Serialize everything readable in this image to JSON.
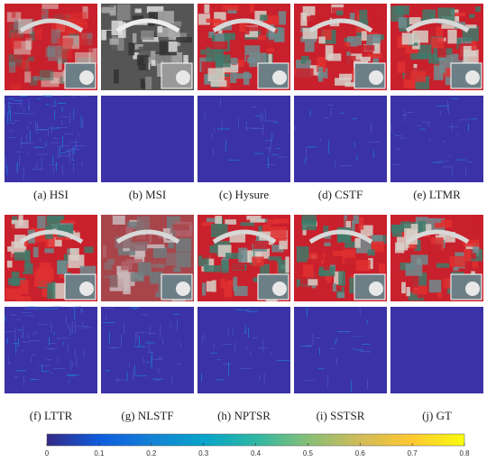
{
  "panels": [
    {
      "caption": "(a) HSI"
    },
    {
      "caption": "(b) MSI"
    },
    {
      "caption": "(c) Hysure"
    },
    {
      "caption": "(d) CSTF"
    },
    {
      "caption": "(e) LTMR"
    },
    {
      "caption": "(f) LTTR"
    },
    {
      "caption": "(g) NLSTF"
    },
    {
      "caption": "(h) NPTSR"
    },
    {
      "caption": "(i) SSTSR"
    },
    {
      "caption": "(j) GT"
    }
  ],
  "colorbar": {
    "lim": [
      0,
      0.8
    ],
    "ticks": [
      0,
      0.1,
      0.2,
      0.3,
      0.4,
      0.5,
      0.6,
      0.7,
      0.8
    ]
  }
}
